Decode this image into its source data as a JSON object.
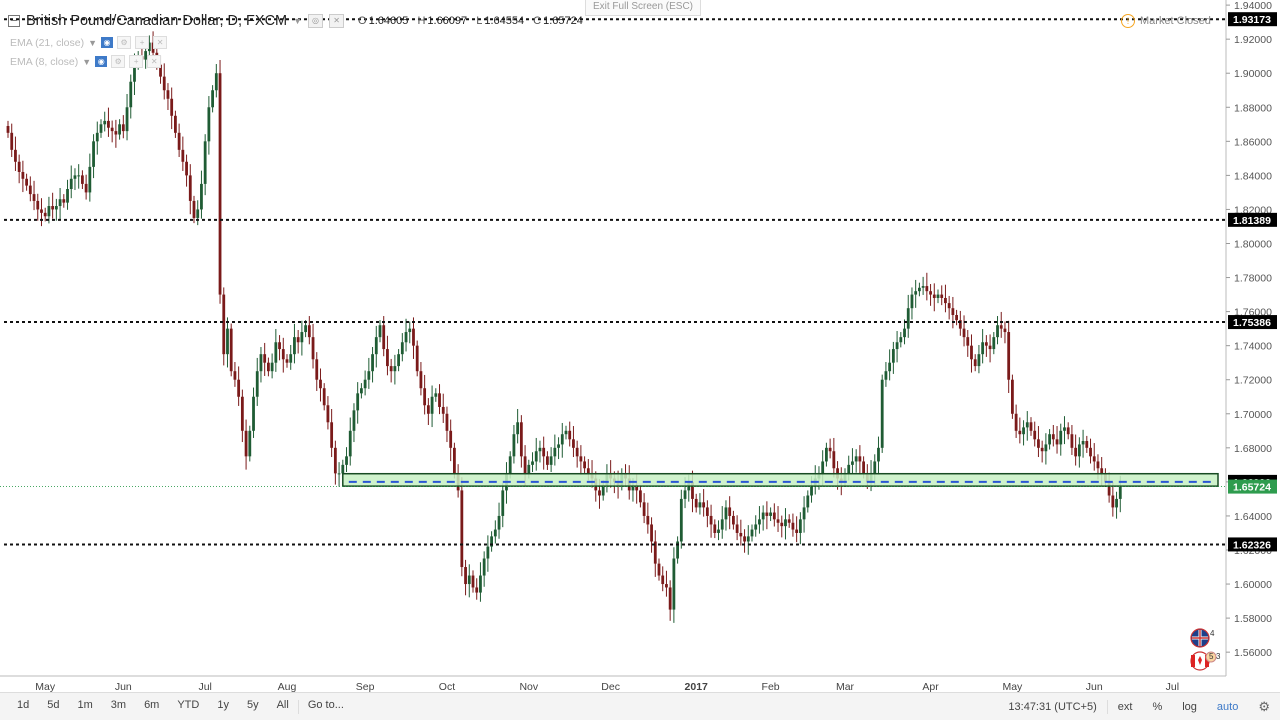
{
  "header": {
    "symbol": "British Pound/Canadian Dollar, D, FXCM",
    "ohlc": [
      {
        "k": "O",
        "v": "1.64605"
      },
      {
        "k": "H",
        "v": "1.66097"
      },
      {
        "k": "L",
        "v": "1.64554"
      },
      {
        "k": "C",
        "v": "1.65724"
      }
    ],
    "indicators": [
      {
        "label": "EMA (21, close)"
      },
      {
        "label": "EMA (8, close)"
      }
    ]
  },
  "exit_fullscreen": "Exit Full Screen (ESC)",
  "market_status": "Market Closed",
  "price_axis": {
    "min": 1.546,
    "max": 1.943,
    "ticks": [
      "1.94000",
      "1.92000",
      "1.90000",
      "1.88000",
      "1.86000",
      "1.84000",
      "1.82000",
      "1.80000",
      "1.78000",
      "1.76000",
      "1.74000",
      "1.72000",
      "1.70000",
      "1.68000",
      "1.66000",
      "1.64000",
      "1.62000",
      "1.60000",
      "1.58000",
      "1.56000"
    ],
    "tick_values": [
      1.94,
      1.92,
      1.9,
      1.88,
      1.86,
      1.84,
      1.82,
      1.8,
      1.78,
      1.76,
      1.74,
      1.72,
      1.7,
      1.68,
      1.66,
      1.64,
      1.62,
      1.6,
      1.58,
      1.56
    ]
  },
  "time_axis": {
    "labels": [
      {
        "t": "May",
        "bold": false
      },
      {
        "t": "Jun",
        "bold": false
      },
      {
        "t": "Jul",
        "bold": false
      },
      {
        "t": "Aug",
        "bold": false
      },
      {
        "t": "Sep",
        "bold": false
      },
      {
        "t": "Oct",
        "bold": false
      },
      {
        "t": "Nov",
        "bold": false
      },
      {
        "t": "Dec",
        "bold": false
      },
      {
        "t": "2017",
        "bold": true
      },
      {
        "t": "Feb",
        "bold": false
      },
      {
        "t": "Mar",
        "bold": false
      },
      {
        "t": "Apr",
        "bold": false
      },
      {
        "t": "May",
        "bold": false
      },
      {
        "t": "Jun",
        "bold": false
      },
      {
        "t": "Jul",
        "bold": false
      }
    ],
    "bar_index": [
      10,
      31,
      53,
      75,
      96,
      118,
      140,
      162,
      185,
      205,
      225,
      248,
      270,
      292,
      313
    ]
  },
  "levels": [
    {
      "label": "1.93173",
      "value": 1.93173
    },
    {
      "label": "1.81389",
      "value": 1.81389
    },
    {
      "label": "1.75386",
      "value": 1.75386
    },
    {
      "label": "1.62326",
      "value": 1.62326
    }
  ],
  "zone": {
    "top": 1.6648,
    "bottom": 1.6575,
    "mid": 1.66,
    "start_bar": 90
  },
  "price_labels": [
    {
      "label": "1.66000",
      "value": 1.66,
      "color": "#000000"
    },
    {
      "label": "1.65724",
      "value": 1.65724,
      "color": "#2e9c4e"
    }
  ],
  "colors": {
    "up": "#1f5c34",
    "down": "#7a1a1a",
    "level": "#111111",
    "zone_fill": "#c7f0c3",
    "zone_border": "#174a22",
    "zone_mid": "#2a55d4",
    "last_price": "#2e9c4e"
  },
  "chart_data": {
    "type": "candlestick",
    "symbol": "British Pound/Canadian Dollar",
    "interval": "D",
    "closes": [
      1.865,
      1.855,
      1.848,
      1.842,
      1.838,
      1.834,
      1.829,
      1.825,
      1.82,
      1.818,
      1.816,
      1.822,
      1.82,
      1.822,
      1.826,
      1.824,
      1.832,
      1.838,
      1.84,
      1.84,
      1.835,
      1.83,
      1.845,
      1.86,
      1.865,
      1.87,
      1.872,
      1.868,
      1.866,
      1.864,
      1.87,
      1.866,
      1.88,
      1.895,
      1.905,
      1.91,
      1.908,
      1.913,
      1.918,
      1.912,
      1.905,
      1.898,
      1.89,
      1.885,
      1.875,
      1.865,
      1.855,
      1.848,
      1.84,
      1.825,
      1.815,
      1.82,
      1.835,
      1.86,
      1.88,
      1.89,
      1.9,
      1.77,
      1.735,
      1.75,
      1.725,
      1.72,
      1.71,
      1.69,
      1.675,
      1.69,
      1.71,
      1.725,
      1.735,
      1.73,
      1.725,
      1.73,
      1.742,
      1.738,
      1.732,
      1.73,
      1.735,
      1.745,
      1.742,
      1.748,
      1.752,
      1.745,
      1.732,
      1.72,
      1.715,
      1.705,
      1.695,
      1.68,
      1.665,
      1.665,
      1.67,
      1.675,
      1.69,
      1.702,
      1.712,
      1.715,
      1.72,
      1.725,
      1.735,
      1.745,
      1.752,
      1.738,
      1.728,
      1.725,
      1.728,
      1.735,
      1.742,
      1.748,
      1.75,
      1.74,
      1.725,
      1.715,
      1.705,
      1.7,
      1.71,
      1.712,
      1.704,
      1.7,
      1.69,
      1.68,
      1.665,
      1.655,
      1.61,
      1.6,
      1.605,
      1.598,
      1.595,
      1.605,
      1.615,
      1.622,
      1.628,
      1.632,
      1.64,
      1.655,
      1.665,
      1.675,
      1.688,
      1.695,
      1.675,
      1.665,
      1.67,
      1.672,
      1.678,
      1.68,
      1.675,
      1.67,
      1.675,
      1.68,
      1.682,
      1.688,
      1.69,
      1.685,
      1.68,
      1.675,
      1.672,
      1.668,
      1.665,
      1.662,
      1.655,
      1.652,
      1.658,
      1.665,
      1.662,
      1.66,
      1.658,
      1.665,
      1.662,
      1.655,
      1.658,
      1.655,
      1.648,
      1.64,
      1.635,
      1.625,
      1.612,
      1.605,
      1.6,
      1.598,
      1.585,
      1.615,
      1.625,
      1.65,
      1.655,
      1.66,
      1.65,
      1.645,
      1.648,
      1.645,
      1.64,
      1.635,
      1.63,
      1.632,
      1.638,
      1.645,
      1.64,
      1.635,
      1.63,
      1.628,
      1.625,
      1.628,
      1.632,
      1.635,
      1.638,
      1.642,
      1.64,
      1.642,
      1.638,
      1.636,
      1.634,
      1.638,
      1.636,
      1.632,
      1.63,
      1.638,
      1.645,
      1.652,
      1.658,
      1.662,
      1.665,
      1.672,
      1.68,
      1.678,
      1.668,
      1.662,
      1.66,
      1.665,
      1.67,
      1.672,
      1.675,
      1.672,
      1.665,
      1.66,
      1.665,
      1.672,
      1.68,
      1.72,
      1.725,
      1.73,
      1.738,
      1.742,
      1.745,
      1.75,
      1.762,
      1.77,
      1.772,
      1.774,
      1.775,
      1.772,
      1.77,
      1.768,
      1.77,
      1.768,
      1.765,
      1.762,
      1.758,
      1.755,
      1.75,
      1.745,
      1.74,
      1.732,
      1.728,
      1.735,
      1.742,
      1.74,
      1.738,
      1.745,
      1.752,
      1.75,
      1.748,
      1.72,
      1.7,
      1.69,
      1.688,
      1.692,
      1.695,
      1.69,
      1.685,
      1.68,
      1.678,
      1.682,
      1.688,
      1.685,
      1.682,
      1.69,
      1.692,
      1.688,
      1.68,
      1.675,
      1.682,
      1.684,
      1.68,
      1.675,
      1.672,
      1.668,
      1.665,
      1.66,
      1.652,
      1.645,
      1.65,
      1.657
    ]
  },
  "timeframes": [
    "1d",
    "5d",
    "1m",
    "3m",
    "6m",
    "YTD",
    "1y",
    "5y",
    "All"
  ],
  "goto_label": "Go to...",
  "clock": "13:47:31 (UTC+5)",
  "toggles": [
    "ext",
    "%",
    "log"
  ],
  "auto_label": "auto",
  "flag_counts": {
    "top": "4",
    "bottom_a": "5",
    "bottom_b": "3"
  }
}
